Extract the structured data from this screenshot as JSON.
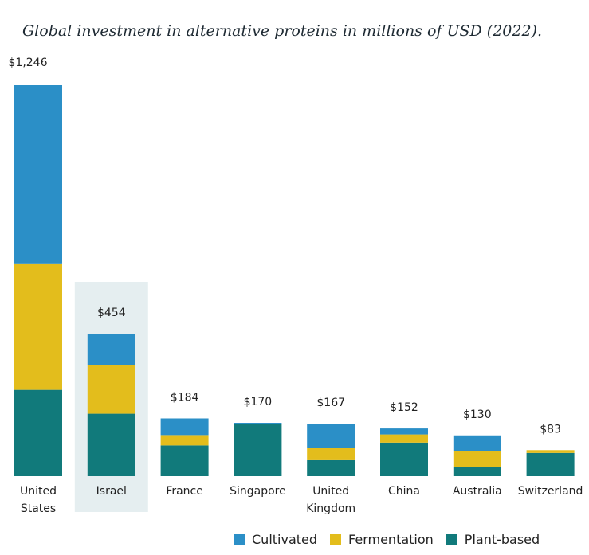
{
  "chart_data": {
    "type": "bar",
    "stacked": true,
    "title": "Global investment in alternative proteins in millions of USD (2022).",
    "categories": [
      "United States",
      "Israel",
      "France",
      "Singapore",
      "United Kingdom",
      "China",
      "Australia",
      "Switzerland"
    ],
    "category_lines": [
      [
        "United",
        "States"
      ],
      [
        "Israel"
      ],
      [
        "France"
      ],
      [
        "Singapore"
      ],
      [
        "United",
        "Kingdom"
      ],
      [
        "China"
      ],
      [
        "Australia"
      ],
      [
        "Switzerland"
      ]
    ],
    "totals": [
      1246,
      454,
      184,
      170,
      167,
      152,
      130,
      83
    ],
    "total_labels": [
      "$1,246",
      "$454",
      "$184",
      "$170",
      "$167",
      "$152",
      "$130",
      "$83"
    ],
    "series": [
      {
        "name": "Plant-based",
        "color": "#117a7b",
        "values": [
          275,
          199,
          98,
          167,
          51,
          107,
          29,
          74
        ]
      },
      {
        "name": "Fermentation",
        "color": "#e3bd1c",
        "values": [
          403,
          154,
          33,
          0,
          40,
          26,
          51,
          9
        ]
      },
      {
        "name": "Cultivated",
        "color": "#2b8fc7",
        "values": [
          568,
          101,
          53,
          3,
          76,
          19,
          50,
          0
        ]
      }
    ],
    "legend_order": [
      "Cultivated",
      "Fermentation",
      "Plant-based"
    ],
    "highlight_category": "Israel",
    "highlight_color": "#e5eef0",
    "ylim": [
      0,
      1246
    ],
    "grid": false,
    "legend_position": "bottom"
  }
}
